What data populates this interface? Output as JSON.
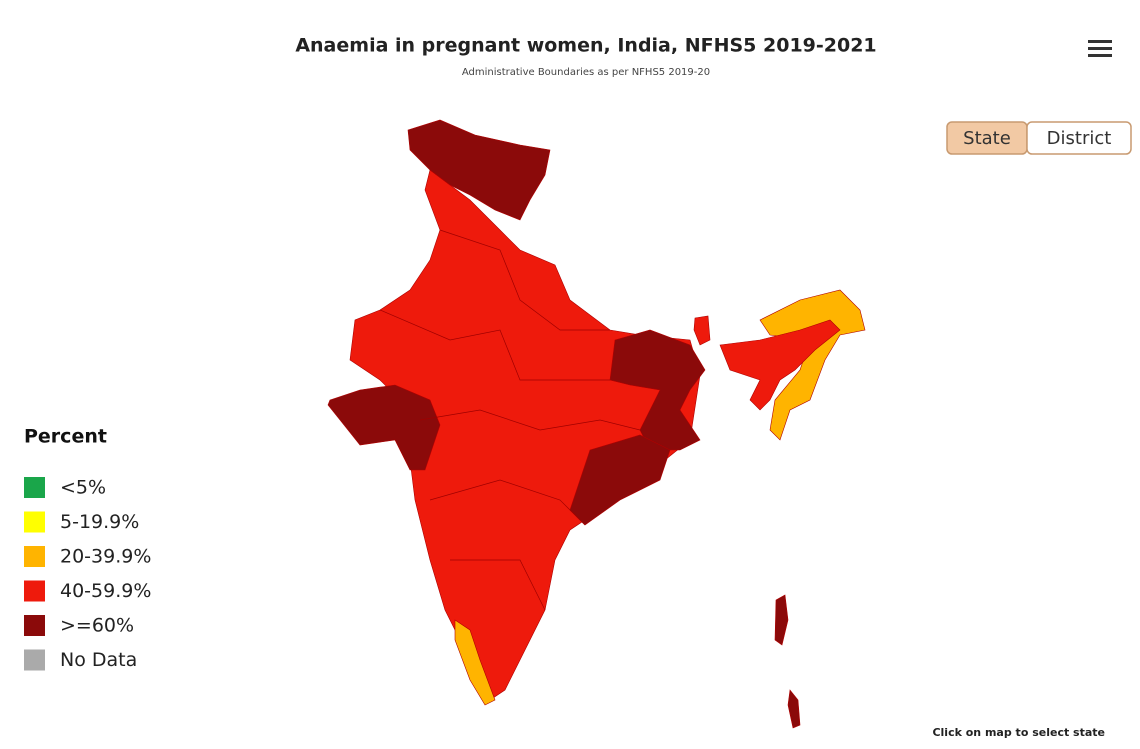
{
  "header": {
    "title": "Anaemia in pregnant women, India, NFHS5 2019-2021",
    "subtitle": "Administrative Boundaries as per NFHS5 2019-20"
  },
  "toggle": {
    "options": [
      "State",
      "District"
    ],
    "selected": "State"
  },
  "legend": {
    "title": "Percent",
    "items": [
      {
        "label": "<5%",
        "color": "#1aa64a"
      },
      {
        "label": "5-19.9%",
        "color": "#ffff00"
      },
      {
        "label": "20-39.9%",
        "color": "#ffb400"
      },
      {
        "label": "40-59.9%",
        "color": "#ee1a0c"
      },
      {
        "label": ">=60%",
        "color": "#8b0a0a"
      },
      {
        "label": "No Data",
        "color": "#aaaaaa"
      }
    ]
  },
  "footer": {
    "note": "Click on map to select state"
  }
}
